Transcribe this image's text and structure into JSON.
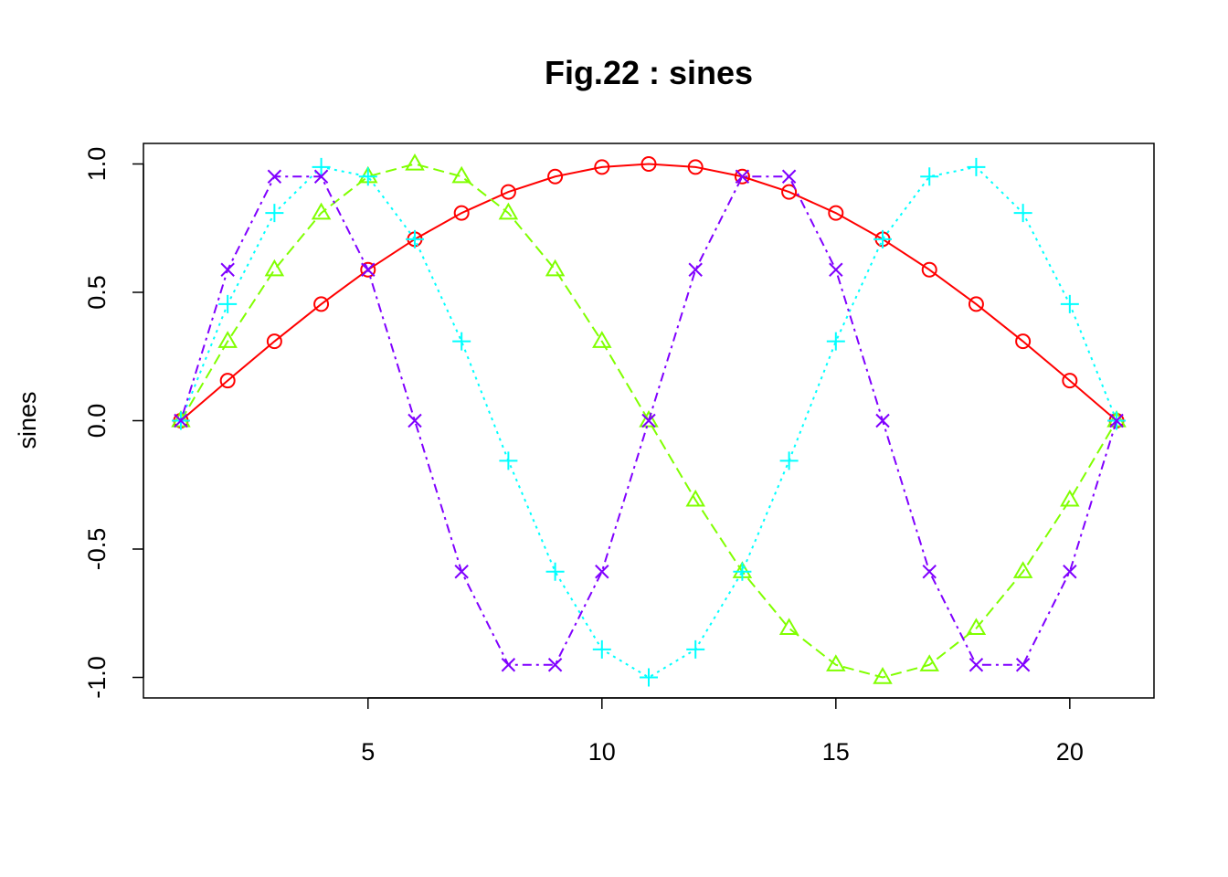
{
  "chart_data": {
    "type": "line",
    "title": "Fig.22 : sines",
    "xlabel": "",
    "ylabel": "sines",
    "xlim": [
      0.2,
      21.8
    ],
    "ylim": [
      -1.08,
      1.08
    ],
    "x_ticks": [
      5,
      10,
      15,
      20
    ],
    "x_tick_labels": [
      "5",
      "10",
      "15",
      "20"
    ],
    "y_ticks": [
      -1.0,
      -0.5,
      0.0,
      0.5,
      1.0
    ],
    "y_tick_labels": [
      "-1.0",
      "-0.5",
      "0.0",
      "0.5",
      "1.0"
    ],
    "grid": false,
    "legend": "none",
    "x": [
      1,
      2,
      3,
      4,
      5,
      6,
      7,
      8,
      9,
      10,
      11,
      12,
      13,
      14,
      15,
      16,
      17,
      18,
      19,
      20,
      21
    ],
    "series": [
      {
        "color": "#ff0000",
        "line_style": "solid",
        "marker": "circle",
        "values": [
          0,
          0.156,
          0.309,
          0.454,
          0.588,
          0.707,
          0.809,
          0.891,
          0.951,
          0.988,
          1.0,
          0.988,
          0.951,
          0.891,
          0.809,
          0.707,
          0.588,
          0.454,
          0.309,
          0.156,
          0
        ]
      },
      {
        "color": "#80ff00",
        "line_style": "dashed",
        "marker": "triangle",
        "values": [
          0,
          0.309,
          0.588,
          0.809,
          0.951,
          1.0,
          0.951,
          0.809,
          0.588,
          0.309,
          0,
          -0.309,
          -0.588,
          -0.809,
          -0.951,
          -1.0,
          -0.951,
          -0.809,
          -0.588,
          -0.309,
          0
        ]
      },
      {
        "color": "#00ffff",
        "line_style": "dotted",
        "marker": "plus",
        "values": [
          0,
          0.454,
          0.809,
          0.988,
          0.951,
          0.707,
          0.309,
          -0.156,
          -0.588,
          -0.891,
          -1.0,
          -0.891,
          -0.588,
          -0.156,
          0.309,
          0.707,
          0.951,
          0.988,
          0.809,
          0.454,
          0
        ]
      },
      {
        "color": "#8000ff",
        "line_style": "dotdash",
        "marker": "cross",
        "values": [
          0,
          0.588,
          0.951,
          0.951,
          0.588,
          0,
          -0.588,
          -0.951,
          -0.951,
          -0.588,
          0,
          0.588,
          0.951,
          0.951,
          0.588,
          0,
          -0.588,
          -0.951,
          -0.951,
          -0.588,
          0
        ]
      }
    ]
  }
}
